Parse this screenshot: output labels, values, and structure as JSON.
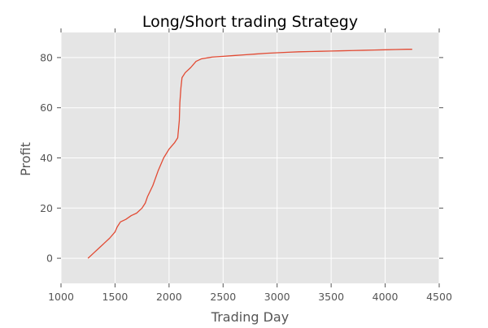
{
  "chart_data": {
    "type": "line",
    "title": "Long/Short trading Strategy",
    "xlabel": "Trading Day",
    "ylabel": "Profit",
    "xlim": [
      1000,
      4500
    ],
    "ylim": [
      -10,
      90
    ],
    "x_ticks": [
      1000,
      1500,
      2000,
      2500,
      3000,
      3500,
      4000,
      4500
    ],
    "y_ticks": [
      0,
      20,
      40,
      60,
      80
    ],
    "grid": true,
    "colors": {
      "background": "#e5e5e5",
      "grid": "#ffffff",
      "line": "#e24a33",
      "text": "#555555"
    },
    "series": [
      {
        "x": [
          1250,
          1300,
          1350,
          1400,
          1450,
          1500,
          1520,
          1550,
          1600,
          1650,
          1700,
          1750,
          1780,
          1800,
          1850,
          1900,
          1950,
          2000,
          2020,
          2050,
          2080,
          2095,
          2100,
          2110,
          2120,
          2150,
          2200,
          2250,
          2300,
          2400,
          2500,
          2600,
          2700,
          2800,
          2900,
          3000,
          3100,
          3200,
          3300,
          3400,
          3500,
          3600,
          3700,
          3800,
          3900,
          4000,
          4100,
          4200,
          4250
        ],
        "y": [
          0,
          2,
          4,
          6,
          8,
          10.5,
          12.5,
          14.5,
          15.5,
          17,
          18,
          20,
          22,
          24.5,
          29,
          35,
          40,
          43.5,
          44.5,
          46,
          48,
          55,
          62,
          68,
          72,
          74,
          76,
          78.5,
          79.5,
          80.2,
          80.5,
          80.8,
          81.1,
          81.4,
          81.7,
          81.9,
          82.1,
          82.3,
          82.4,
          82.5,
          82.6,
          82.7,
          82.8,
          82.9,
          83.0,
          83.1,
          83.2,
          83.3,
          83.3
        ]
      }
    ]
  }
}
